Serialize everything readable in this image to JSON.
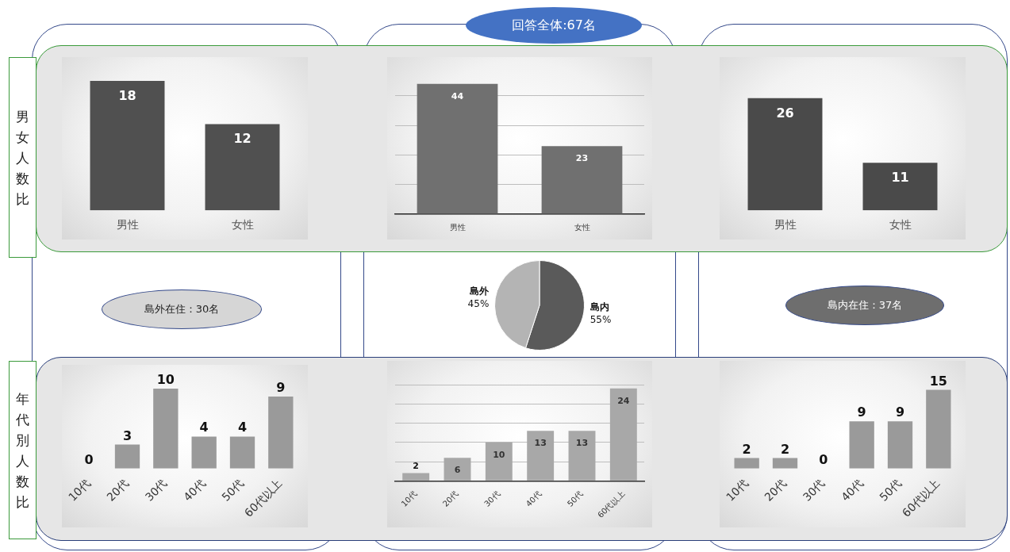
{
  "chart_data": [
    {
      "type": "bar",
      "categories": [
        "男性",
        "女性"
      ],
      "values": [
        18,
        12
      ],
      "color": "#505050",
      "data_labels": true,
      "tick_labels": "x",
      "annotations": [
        "男女人数比"
      ]
    },
    {
      "type": "bar",
      "title": "回答全体:67名",
      "categories": [
        "男性",
        "女性"
      ],
      "values": [
        44,
        23
      ],
      "color": "#707070",
      "data_labels": true,
      "tick_labels": "x",
      "grid": "y",
      "yticks": [
        {
          "value": 0,
          "label": null
        },
        {
          "value": 10,
          "label": null
        },
        {
          "value": 20,
          "label": null
        },
        {
          "value": 30,
          "label": null
        },
        {
          "value": 40,
          "label": null
        }
      ]
    },
    {
      "type": "bar",
      "categories": [
        "男性",
        "女性"
      ],
      "values": [
        26,
        11
      ],
      "color": "#4a4a4a",
      "data_labels": true,
      "tick_labels": "x"
    },
    {
      "type": "pie",
      "categories": [
        "島内",
        "島外"
      ],
      "values": [
        55,
        45
      ],
      "colors": [
        "#5a5a5a",
        "#b4b4b4"
      ],
      "value_labels": [
        "55%",
        "45%"
      ],
      "annotations": [
        "島外在住：30名",
        "島内在住：37名"
      ]
    },
    {
      "type": "bar",
      "categories": [
        "10代",
        "20代",
        "30代",
        "40代",
        "50代",
        "60代以上"
      ],
      "values": [
        0,
        3,
        10,
        4,
        4,
        9
      ],
      "color": "#9a9a9a",
      "data_labels": true,
      "tick_labels": "x",
      "annotations": [
        "年代別人数比"
      ]
    },
    {
      "type": "bar",
      "categories": [
        "10代",
        "20代",
        "30代",
        "40代",
        "50代",
        "60代以上"
      ],
      "values": [
        2,
        6,
        10,
        13,
        13,
        24
      ],
      "color": "#a8a8a8",
      "data_labels": true,
      "tick_labels": "x",
      "grid": "y",
      "yticks": [
        {
          "value": 0,
          "label": null
        },
        {
          "value": 5,
          "label": null
        },
        {
          "value": 10,
          "label": null
        },
        {
          "value": 15,
          "label": null
        },
        {
          "value": 20,
          "label": null
        },
        {
          "value": 25,
          "label": null
        }
      ]
    },
    {
      "type": "bar",
      "categories": [
        "10代",
        "20代",
        "30代",
        "40代",
        "50代",
        "60代以上"
      ],
      "values": [
        2,
        2,
        0,
        9,
        9,
        15
      ],
      "color": "#9a9a9a",
      "data_labels": true,
      "tick_labels": "x"
    }
  ]
}
